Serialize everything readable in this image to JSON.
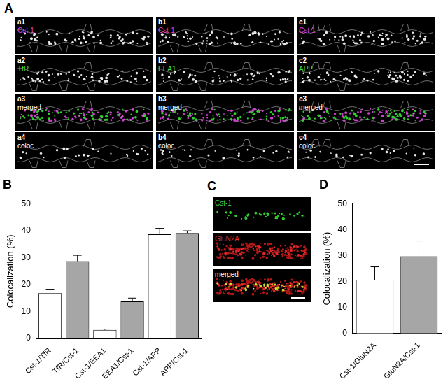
{
  "panel_A": {
    "label": "A",
    "columns": [
      {
        "rows": [
          {
            "id": "a1",
            "text": "Cst-1",
            "color": "#e040e0"
          },
          {
            "id": "a2",
            "text": "TfR",
            "color": "#40e040"
          },
          {
            "id": "a3",
            "text": "merged",
            "color": "#ffffff"
          },
          {
            "id": "a4",
            "text": "coloc",
            "color": "#ffffff"
          }
        ]
      },
      {
        "rows": [
          {
            "id": "b1",
            "text": "Cst-1",
            "color": "#e040e0"
          },
          {
            "id": "b2",
            "text": "EEA1",
            "color": "#40e040"
          },
          {
            "id": "b3",
            "text": "merged",
            "color": "#ffffff"
          },
          {
            "id": "b4",
            "text": "coloc",
            "color": "#ffffff"
          }
        ]
      },
      {
        "rows": [
          {
            "id": "c1",
            "text": "Cst-1",
            "color": "#e040e0"
          },
          {
            "id": "c2",
            "text": "APP",
            "color": "#40e040"
          },
          {
            "id": "c3",
            "text": "merged",
            "color": "#ffffff"
          },
          {
            "id": "c4",
            "text": "coloc",
            "color": "#ffffff"
          }
        ]
      }
    ]
  },
  "panel_C": {
    "label": "C",
    "rows": [
      {
        "text": "Cst-1",
        "color": "#40d040"
      },
      {
        "text": "GluN2A",
        "color": "#e03030"
      },
      {
        "text": "merged",
        "color": "#ffffff"
      }
    ]
  },
  "chart_data": [
    {
      "type": "bar",
      "title": "B",
      "y_label": "Colocalization (%)",
      "categories": [
        "Cst-1/TfR",
        "TfR/Cst-1",
        "Cst-1/EEA1",
        "EEA1/Cst-1",
        "Cst-1/APP",
        "APP/Cst-1"
      ],
      "values": [
        16.8,
        28.7,
        3.2,
        13.8,
        38.7,
        39.2
      ],
      "errors": [
        1.5,
        2.2,
        0.3,
        1.2,
        2.2,
        0.8
      ],
      "colors": [
        "#ffffff",
        "#a6a6a6",
        "#ffffff",
        "#a6a6a6",
        "#ffffff",
        "#a6a6a6"
      ],
      "ylim": [
        0,
        50
      ],
      "yticks": [
        0,
        10,
        20,
        30,
        40,
        50
      ],
      "grid": false
    },
    {
      "type": "bar",
      "title": "D",
      "y_label": "Colocalization (%)",
      "categories": [
        "Cst-1/GluN2A",
        "GluN2A/Cst-1"
      ],
      "values": [
        20.7,
        29.8
      ],
      "errors": [
        5.0,
        5.9
      ],
      "colors": [
        "#ffffff",
        "#a6a6a6"
      ],
      "ylim": [
        0,
        50
      ],
      "yticks": [
        0,
        10,
        20,
        30,
        40,
        50
      ],
      "grid": false
    }
  ]
}
